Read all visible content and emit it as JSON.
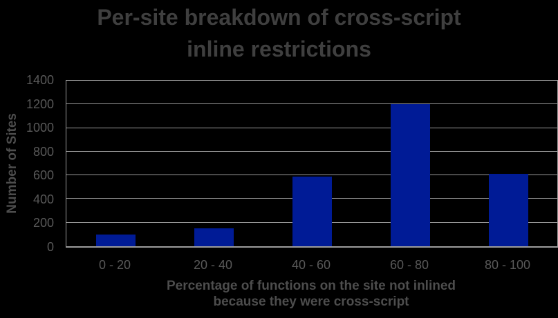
{
  "chart": {
    "title_lines": [
      "Per-site breakdown of cross-script",
      "inline restrictions"
    ],
    "xlabel_lines": [
      "Percentage of functions on the site not inlined",
      "because they were cross-script"
    ]
  },
  "chart_data": {
    "type": "bar",
    "title": "Per-site breakdown of cross-script inline restrictions",
    "categories": [
      "0 - 20",
      "20 - 40",
      "40 - 60",
      "60 - 80",
      "80 - 100"
    ],
    "values": [
      100,
      150,
      590,
      1200,
      610
    ],
    "xlabel": "Percentage of functions on the site not inlined because they were cross-script",
    "ylabel": "Number of Sites",
    "ylim": [
      0,
      1400
    ],
    "ytick_step": 200,
    "yticks": [
      0,
      200,
      400,
      600,
      800,
      1000,
      1200,
      1400
    ],
    "grid": "horizontal-only",
    "legend": "none",
    "colors": {
      "background": "#000000",
      "bar": "#001b96",
      "gridline": "#9d9d9d",
      "title_text": "#3f3f3f",
      "axis_title_text": "#4d4d4d",
      "tick_text": "#595959"
    }
  }
}
